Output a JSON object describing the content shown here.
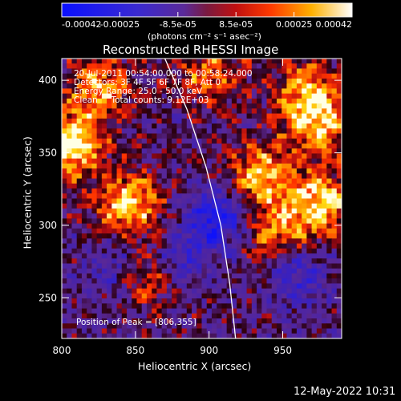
{
  "colorbar": {
    "tick_labels": [
      "-0.00042",
      "-0.00025",
      "-8.5e-05",
      "8.5e-05",
      "0.00025",
      "0.00042"
    ],
    "units_label": "(photons cm⁻² s⁻¹ asec⁻²)",
    "range": [
      -0.00042,
      0.00042
    ],
    "colors": {
      "negative": "#1a16ff",
      "zero": "#5a2a9a",
      "mid": "#ff3a00",
      "high": "#ffd400",
      "max": "#ffffff"
    }
  },
  "chart_data": {
    "type": "heatmap",
    "title": "Reconstructed RHESSI Image",
    "xlabel": "Heliocentric X (arcsec)",
    "ylabel": "Heliocentric Y (arcsec)",
    "xlim": [
      800,
      990
    ],
    "ylim": [
      222,
      415
    ],
    "x_ticks": [
      800,
      850,
      900,
      950
    ],
    "y_ticks": [
      250,
      300,
      350,
      400
    ],
    "x_tick_labels": [
      "800",
      "850",
      "900",
      "950"
    ],
    "y_tick_labels": [
      "250",
      "300",
      "350",
      "400"
    ],
    "limb_curve": [
      [
        870,
        415
      ],
      [
        885,
        380
      ],
      [
        898,
        340
      ],
      [
        908,
        300
      ],
      [
        914,
        260
      ],
      [
        918,
        222
      ]
    ],
    "annotations": [
      "20-Jul-2011 00:54:00.000 to 00:58:24.000",
      "Detectors: 3F 4F 5F 6F 7F 8F, Att 0",
      "Energy Range: 25.0 - 50.0 keV",
      "Clean     Total counts: 9.12E+03"
    ],
    "peak_label": "Position of Peak = [806,355]",
    "peak_position": [
      806,
      355
    ],
    "bright_regions": [
      {
        "x": 806,
        "y": 355,
        "level": 1.0
      },
      {
        "x": 845,
        "y": 315,
        "level": 0.85
      },
      {
        "x": 825,
        "y": 395,
        "level": 0.7
      },
      {
        "x": 900,
        "y": 405,
        "level": 0.55
      },
      {
        "x": 935,
        "y": 335,
        "level": 0.75
      },
      {
        "x": 975,
        "y": 370,
        "level": 0.8
      },
      {
        "x": 975,
        "y": 315,
        "level": 0.9
      },
      {
        "x": 860,
        "y": 265,
        "level": 0.5
      },
      {
        "x": 945,
        "y": 295,
        "level": 0.55
      },
      {
        "x": 965,
        "y": 395,
        "level": 0.6
      }
    ],
    "dark_regions": [
      {
        "x": 905,
        "y": 305,
        "level": 0.8
      },
      {
        "x": 880,
        "y": 275,
        "level": 0.5
      },
      {
        "x": 960,
        "y": 265,
        "level": 0.5
      },
      {
        "x": 835,
        "y": 270,
        "level": 0.4
      }
    ]
  },
  "footer": {
    "timestamp": "12-May-2022 10:31"
  }
}
